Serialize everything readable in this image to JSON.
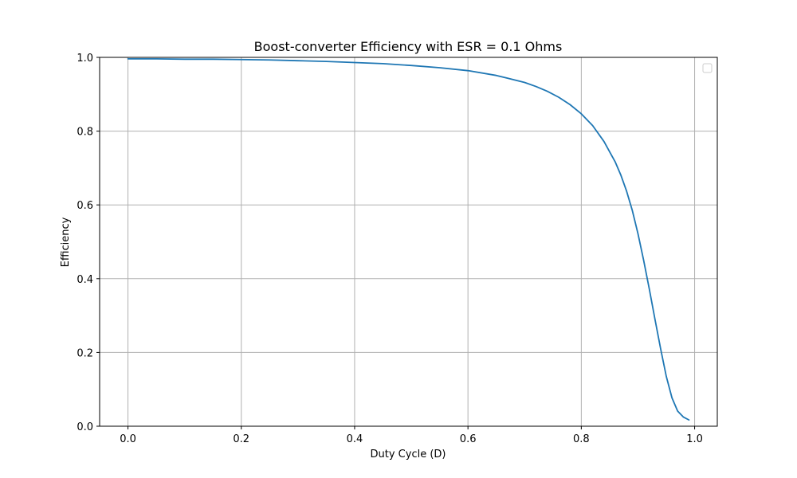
{
  "chart_data": {
    "type": "line",
    "title": "Boost-converter Efficiency with ESR = 0.1 Ohms",
    "xlabel": "Duty Cycle (D)",
    "ylabel": "Efficiency",
    "xlim": [
      -0.05,
      1.04
    ],
    "ylim": [
      0.0,
      1.0
    ],
    "xticks": [
      "0.0",
      "0.2",
      "0.4",
      "0.6",
      "0.8",
      "1.0"
    ],
    "yticks": [
      "0.0",
      "0.2",
      "0.4",
      "0.6",
      "0.8",
      "1.0"
    ],
    "grid": true,
    "legend": "upper right (empty)",
    "series": [
      {
        "color": "#1f77b4",
        "x": [
          0.0,
          0.05,
          0.1,
          0.15,
          0.2,
          0.25,
          0.3,
          0.35,
          0.4,
          0.45,
          0.5,
          0.55,
          0.6,
          0.65,
          0.7,
          0.72,
          0.74,
          0.76,
          0.78,
          0.8,
          0.82,
          0.84,
          0.86,
          0.87,
          0.88,
          0.89,
          0.9,
          0.91,
          0.92,
          0.93,
          0.94,
          0.95,
          0.96,
          0.97,
          0.98,
          0.99
        ],
        "y": [
          0.996,
          0.996,
          0.995,
          0.995,
          0.994,
          0.993,
          0.991,
          0.989,
          0.986,
          0.983,
          0.978,
          0.972,
          0.964,
          0.951,
          0.932,
          0.921,
          0.908,
          0.892,
          0.872,
          0.847,
          0.815,
          0.772,
          0.716,
          0.68,
          0.637,
          0.585,
          0.522,
          0.45,
          0.372,
          0.29,
          0.21,
          0.135,
          0.077,
          0.041,
          0.025,
          0.017
        ]
      }
    ]
  }
}
